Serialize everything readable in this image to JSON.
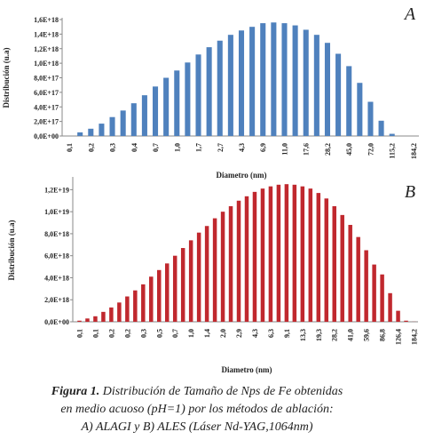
{
  "chart_data": [
    {
      "type": "bar",
      "panel_label": "A",
      "x_label": "Diametro (nm)",
      "y_label": "Distribución (u.a)",
      "color": "#4f81bd",
      "categories": [
        "0,1",
        null,
        "0,2",
        null,
        "0,3",
        null,
        "0,4",
        null,
        "0,7",
        null,
        "1,0",
        null,
        "1,7",
        null,
        "2,7",
        null,
        "4,3",
        null,
        "6,9",
        null,
        "11,0",
        null,
        "17,6",
        null,
        "28,2",
        null,
        "45,0",
        null,
        "72,0",
        null,
        "115,2",
        null,
        "184,2"
      ],
      "values": [
        null,
        5e+16,
        1e+17,
        1.7e+17,
        2.6e+17,
        3.5e+17,
        4.5e+17,
        5.6e+17,
        6.8e+17,
        8e+17,
        9e+17,
        1.01e+18,
        1.12e+18,
        1.22e+18,
        1.31e+18,
        1.39e+18,
        1.45e+18,
        1.5e+18,
        1.55e+18,
        1.56e+18,
        1.55e+18,
        1.52e+18,
        1.46e+18,
        1.39e+18,
        1.28e+18,
        1.13e+18,
        9.6e+17,
        7.3e+17,
        4.7e+17,
        2.1e+17,
        3e+16,
        null,
        null
      ],
      "ylim": [
        0,
        1.6e+18
      ],
      "yticks": [
        {
          "value": 0,
          "label": "0,0E+00"
        },
        {
          "value": 2e+17,
          "label": "2,0E+17"
        },
        {
          "value": 4e+17,
          "label": "4,0E+17"
        },
        {
          "value": 6e+17,
          "label": "6,0E+17"
        },
        {
          "value": 8e+17,
          "label": "8,0E+17"
        },
        {
          "value": 1e+18,
          "label": "1,0E+18"
        },
        {
          "value": 1.2e+18,
          "label": "1,2E+18"
        },
        {
          "value": 1.4e+18,
          "label": "1,4E+18"
        },
        {
          "value": 1.6e+18,
          "label": "1,6E+18"
        }
      ]
    },
    {
      "type": "bar",
      "panel_label": "B",
      "x_label": "Diametro (nm)",
      "y_label": "Distribución (u.a)",
      "color": "#c0282e",
      "categories": [
        "0,1",
        null,
        "0,1",
        null,
        "0,2",
        null,
        "0,2",
        null,
        "0,3",
        null,
        "0,5",
        null,
        "0,7",
        null,
        "1,0",
        null,
        "1,4",
        null,
        "2,0",
        null,
        "2,9",
        null,
        "4,3",
        null,
        "6,3",
        null,
        "9,1",
        null,
        "13,3",
        null,
        "19,3",
        null,
        "28,2",
        null,
        "41,0",
        null,
        "59,6",
        null,
        "86,8",
        null,
        "126,4",
        null,
        "184,2"
      ],
      "values": [
        1e+17,
        3e+17,
        5e+17,
        9e+17,
        1.3e+18,
        1.75e+18,
        2.3e+18,
        2.85e+18,
        3.4e+18,
        4.1e+18,
        4.7e+18,
        5.3e+18,
        6e+18,
        6.7e+18,
        7.4e+18,
        8.1e+18,
        8.7e+18,
        9.4e+18,
        1e+19,
        1.05e+19,
        1.1e+19,
        1.14e+19,
        1.18e+19,
        1.21e+19,
        1.23e+19,
        1.245e+19,
        1.25e+19,
        1.245e+19,
        1.23e+19,
        1.21e+19,
        1.17e+19,
        1.12e+19,
        1.05e+19,
        9.7e+18,
        8.8e+18,
        7.7e+18,
        6.5e+18,
        5.2e+18,
        4.3e+18,
        2.6e+18,
        1e+18,
        1e+17,
        1e+16
      ],
      "ylim": [
        0,
        1.3e+19
      ],
      "yticks": [
        {
          "value": 0,
          "label": "0,0E+00"
        },
        {
          "value": 2e+18,
          "label": "2,0E+18"
        },
        {
          "value": 4e+18,
          "label": "4,0E+18"
        },
        {
          "value": 6e+18,
          "label": "6,0E+18"
        },
        {
          "value": 8e+18,
          "label": "8,0E+18"
        },
        {
          "value": 1e+19,
          "label": "1,0E+19"
        },
        {
          "value": 1.2e+19,
          "label": "1,2E+19"
        }
      ]
    }
  ],
  "caption": {
    "lead": "Figura 1.",
    "line1": " Distribución de Tamaño de Nps de Fe obtenidas",
    "line2": "en medio acuoso (pH=1) por los métodos de ablación:",
    "line3": "A) ALAGI y B) ALES (Láser  Nd-YAG,1064nm)"
  }
}
